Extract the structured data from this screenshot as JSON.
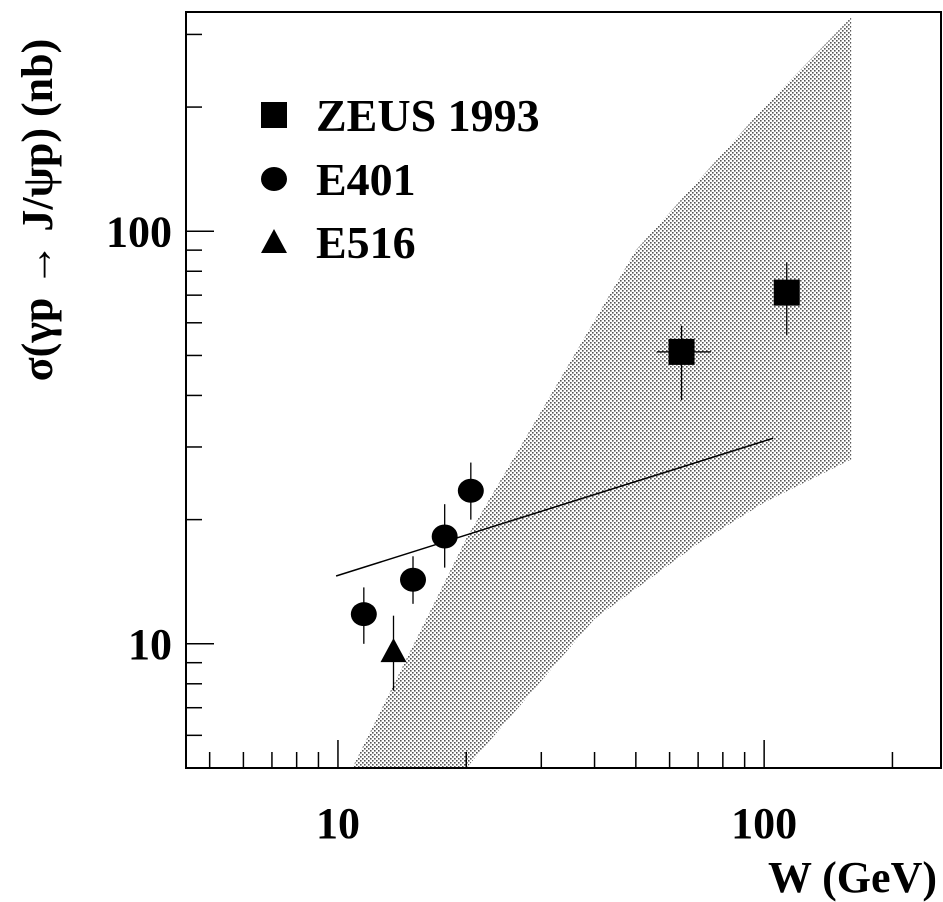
{
  "chart_data": {
    "type": "scatter",
    "xlabel": "W (GeV)",
    "ylabel": "σ(γp → J/ψp) (nb)",
    "xscale": "log",
    "yscale": "log",
    "xlim": [
      4.4,
      260
    ],
    "ylim": [
      5.0,
      340
    ],
    "x_ticklabels": [
      "10",
      "100"
    ],
    "y_ticklabels": [
      "10",
      "100"
    ],
    "grid": false,
    "legend_position": "top-left",
    "series": [
      {
        "name": "ZEUS 1993",
        "marker": "square",
        "points": [
          {
            "x": 64,
            "y": 51,
            "yerr_low": 39,
            "yerr_high": 59,
            "xerr_low": 56,
            "xerr_high": 75
          },
          {
            "x": 113,
            "y": 71,
            "yerr_low": 56,
            "yerr_high": 84
          }
        ]
      },
      {
        "name": "E401",
        "marker": "circle",
        "points": [
          {
            "x": 11.5,
            "y": 11.8,
            "yerr_low": 10.0,
            "yerr_high": 13.7
          },
          {
            "x": 15.0,
            "y": 14.3,
            "yerr_low": 12.5,
            "yerr_high": 16.3
          },
          {
            "x": 17.8,
            "y": 18.2,
            "yerr_low": 15.3,
            "yerr_high": 21.8
          },
          {
            "x": 20.5,
            "y": 23.5,
            "yerr_low": 20.0,
            "yerr_high": 27.5
          }
        ]
      },
      {
        "name": "E516",
        "marker": "triangle",
        "points": [
          {
            "x": 13.5,
            "y": 9.6,
            "yerr_low": 7.7,
            "yerr_high": 11.7
          }
        ]
      }
    ],
    "line": {
      "points": [
        [
          9.9,
          14.6
        ],
        [
          105,
          31.5
        ]
      ]
    },
    "band": {
      "upper": [
        [
          10.8,
          5.0
        ],
        [
          20,
          18
        ],
        [
          50,
          90
        ],
        [
          100,
          200
        ],
        [
          160,
          330
        ]
      ],
      "lower": [
        [
          10.8,
          5.0
        ],
        [
          20,
          5.0
        ],
        [
          40,
          11.5
        ],
        [
          70,
          17.5
        ],
        [
          100,
          22
        ],
        [
          160,
          28
        ]
      ]
    }
  }
}
